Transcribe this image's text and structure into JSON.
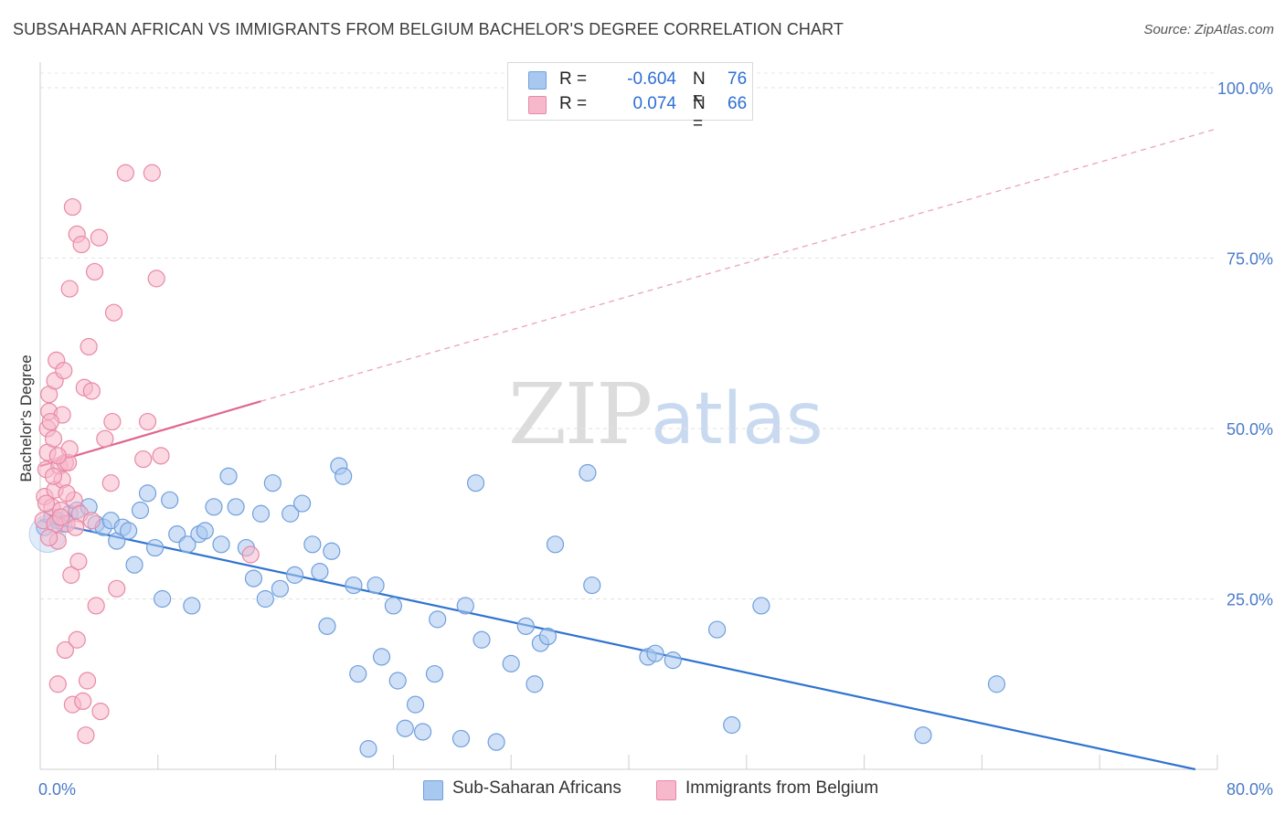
{
  "title": "SUBSAHARAN AFRICAN VS IMMIGRANTS FROM BELGIUM BACHELOR'S DEGREE CORRELATION CHART",
  "source": "Source: ZipAtlas.com",
  "watermark": {
    "zip": "ZIP",
    "atlas": "atlas"
  },
  "legend": {
    "r_label": "R =",
    "n_label": "N =",
    "rows": [
      {
        "r": "-0.604",
        "n": "76",
        "color": "#a9c8f0"
      },
      {
        "r": "0.074",
        "n": "66",
        "color": "#f7b8cb"
      }
    ]
  },
  "bottom_legend": [
    {
      "label": "Sub-Saharan Africans",
      "color": "#a9c8f0"
    },
    {
      "label": "Immigrants from Belgium",
      "color": "#f7b8cb"
    }
  ],
  "chart_data": {
    "type": "scatter",
    "ylabel": "Bachelor's Degree",
    "xlabel": "",
    "xlim": [
      0,
      80
    ],
    "ylim": [
      0,
      100
    ],
    "x_tick_labels": [
      "0.0%",
      "80.0%"
    ],
    "y_tick_labels": [
      "25.0%",
      "50.0%",
      "75.0%",
      "100.0%"
    ],
    "y_ticks": [
      25,
      50,
      75,
      100
    ],
    "grid": true,
    "legend_position": "top-center",
    "series": [
      {
        "name": "Sub-Saharan Africans",
        "color": "#6f9fdc",
        "fill": "#a9c8f0",
        "trend": {
          "x0": 0,
          "y0": 36.5,
          "x1": 78.5,
          "y1": 0
        },
        "points": [
          [
            0.3,
            35.5
          ],
          [
            0.8,
            37.0
          ],
          [
            1.2,
            36.5
          ],
          [
            1.6,
            36.0
          ],
          [
            2.0,
            37.5
          ],
          [
            2.5,
            38.0
          ],
          [
            3.3,
            38.5
          ],
          [
            3.8,
            36.0
          ],
          [
            4.3,
            35.5
          ],
          [
            4.8,
            36.5
          ],
          [
            5.2,
            33.5
          ],
          [
            5.6,
            35.5
          ],
          [
            6.0,
            35.0
          ],
          [
            6.4,
            30.0
          ],
          [
            6.8,
            38.0
          ],
          [
            7.3,
            40.5
          ],
          [
            7.8,
            32.5
          ],
          [
            8.3,
            25.0
          ],
          [
            8.8,
            39.5
          ],
          [
            9.3,
            34.5
          ],
          [
            10.0,
            33.0
          ],
          [
            10.3,
            24.0
          ],
          [
            10.8,
            34.5
          ],
          [
            11.2,
            35.0
          ],
          [
            11.8,
            38.5
          ],
          [
            12.3,
            33.0
          ],
          [
            12.8,
            43.0
          ],
          [
            13.3,
            38.5
          ],
          [
            14.0,
            32.5
          ],
          [
            14.5,
            28.0
          ],
          [
            15.0,
            37.5
          ],
          [
            15.3,
            25.0
          ],
          [
            15.8,
            42.0
          ],
          [
            16.3,
            26.5
          ],
          [
            17.0,
            37.5
          ],
          [
            17.3,
            28.5
          ],
          [
            17.8,
            39.0
          ],
          [
            18.5,
            33.0
          ],
          [
            19.0,
            29.0
          ],
          [
            19.5,
            21.0
          ],
          [
            19.8,
            32.0
          ],
          [
            20.3,
            44.5
          ],
          [
            20.6,
            43.0
          ],
          [
            21.3,
            27.0
          ],
          [
            21.6,
            14.0
          ],
          [
            22.3,
            3.0
          ],
          [
            22.8,
            27.0
          ],
          [
            23.2,
            16.5
          ],
          [
            24.0,
            24.0
          ],
          [
            24.3,
            13.0
          ],
          [
            24.8,
            6.0
          ],
          [
            25.5,
            9.5
          ],
          [
            26.0,
            5.5
          ],
          [
            26.8,
            14.0
          ],
          [
            27.0,
            22.0
          ],
          [
            28.6,
            4.5
          ],
          [
            28.9,
            24.0
          ],
          [
            29.6,
            42.0
          ],
          [
            30.0,
            19.0
          ],
          [
            31.0,
            4.0
          ],
          [
            32.0,
            15.5
          ],
          [
            33.0,
            21.0
          ],
          [
            33.6,
            12.5
          ],
          [
            34.0,
            18.5
          ],
          [
            34.5,
            19.5
          ],
          [
            35.0,
            33.0
          ],
          [
            37.2,
            43.5
          ],
          [
            37.5,
            27.0
          ],
          [
            41.3,
            16.5
          ],
          [
            41.8,
            17.0
          ],
          [
            43.0,
            16.0
          ],
          [
            46.0,
            20.5
          ],
          [
            47.0,
            6.5
          ],
          [
            49.0,
            24.0
          ],
          [
            60.0,
            5.0
          ],
          [
            65.0,
            12.5
          ]
        ]
      },
      {
        "name": "Immigrants from Belgium",
        "color": "#e889a6",
        "fill": "#f7b8cb",
        "trend": {
          "x0": 0,
          "y0": 44.5,
          "x1": 15,
          "y1": 54.0
        },
        "trend_extension": {
          "x0": 15,
          "y0": 54.0,
          "x1": 80,
          "y1": 94.0
        },
        "points": [
          [
            0.2,
            36.5
          ],
          [
            0.3,
            40.0
          ],
          [
            0.4,
            44.0
          ],
          [
            0.5,
            46.5
          ],
          [
            0.5,
            50.0
          ],
          [
            0.6,
            52.5
          ],
          [
            0.6,
            55.0
          ],
          [
            0.8,
            38.5
          ],
          [
            0.9,
            48.5
          ],
          [
            1.0,
            57.0
          ],
          [
            1.0,
            41.0
          ],
          [
            1.1,
            60.0
          ],
          [
            1.2,
            33.5
          ],
          [
            1.2,
            12.5
          ],
          [
            1.3,
            44.5
          ],
          [
            1.4,
            38.0
          ],
          [
            1.5,
            52.0
          ],
          [
            1.5,
            42.5
          ],
          [
            1.6,
            58.5
          ],
          [
            1.7,
            45.0
          ],
          [
            1.7,
            17.5
          ],
          [
            1.8,
            36.0
          ],
          [
            1.9,
            45.0
          ],
          [
            2.0,
            47.0
          ],
          [
            2.0,
            70.5
          ],
          [
            2.1,
            28.5
          ],
          [
            2.2,
            82.5
          ],
          [
            2.2,
            9.5
          ],
          [
            2.3,
            39.5
          ],
          [
            2.5,
            78.5
          ],
          [
            2.5,
            19.0
          ],
          [
            2.6,
            30.5
          ],
          [
            2.7,
            37.5
          ],
          [
            2.8,
            77.0
          ],
          [
            2.9,
            10.0
          ],
          [
            3.0,
            56.0
          ],
          [
            3.1,
            5.0
          ],
          [
            3.2,
            13.0
          ],
          [
            3.3,
            62.0
          ],
          [
            3.5,
            55.5
          ],
          [
            3.5,
            36.5
          ],
          [
            3.7,
            73.0
          ],
          [
            3.8,
            24.0
          ],
          [
            4.0,
            78.0
          ],
          [
            4.1,
            8.5
          ],
          [
            4.4,
            48.5
          ],
          [
            4.8,
            42.0
          ],
          [
            4.9,
            51.0
          ],
          [
            5.0,
            67.0
          ],
          [
            5.2,
            26.5
          ],
          [
            5.8,
            87.5
          ],
          [
            7.0,
            45.5
          ],
          [
            7.3,
            51.0
          ],
          [
            7.6,
            87.5
          ],
          [
            7.9,
            72.0
          ],
          [
            8.2,
            46.0
          ],
          [
            14.3,
            31.5
          ],
          [
            1.0,
            36.0
          ],
          [
            1.4,
            37.0
          ],
          [
            0.7,
            51.0
          ],
          [
            0.9,
            43.0
          ],
          [
            1.8,
            40.5
          ],
          [
            2.4,
            35.5
          ],
          [
            0.4,
            39.0
          ],
          [
            1.2,
            46.0
          ],
          [
            0.6,
            34.0
          ]
        ]
      }
    ]
  }
}
